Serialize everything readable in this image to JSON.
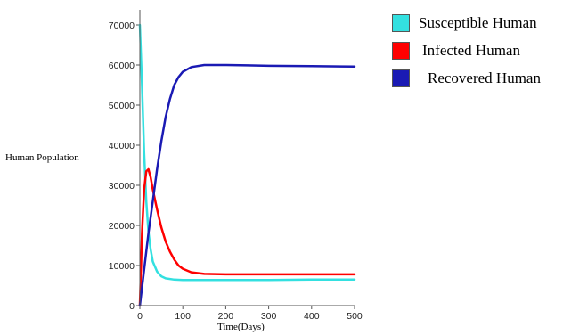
{
  "chart_data": {
    "type": "line",
    "title": "",
    "xlabel": "Time(Days)",
    "ylabel": "Human Population",
    "xlim": [
      0,
      500
    ],
    "ylim": [
      0,
      72000
    ],
    "xticks": [
      0,
      100,
      200,
      300,
      400,
      500
    ],
    "yticks": [
      0,
      10000,
      20000,
      30000,
      40000,
      50000,
      60000,
      70000
    ],
    "grid": false,
    "legend_position": "top-right",
    "series": [
      {
        "name": "Susceptible Human",
        "color": "#33e0e0",
        "x": [
          0,
          5,
          10,
          15,
          20,
          25,
          30,
          40,
          50,
          60,
          80,
          100,
          150,
          200,
          300,
          400,
          500
        ],
        "y": [
          70000,
          55000,
          38000,
          26000,
          18500,
          14000,
          11000,
          8500,
          7300,
          6800,
          6500,
          6400,
          6400,
          6400,
          6400,
          6500,
          6500
        ]
      },
      {
        "name": "Infected Human",
        "color": "#ff0000",
        "x": [
          0,
          5,
          10,
          15,
          20,
          25,
          30,
          40,
          50,
          60,
          70,
          80,
          90,
          100,
          120,
          150,
          200,
          300,
          400,
          500
        ],
        "y": [
          0,
          18000,
          29000,
          33500,
          34000,
          32000,
          29000,
          24000,
          19500,
          16000,
          13500,
          11500,
          10000,
          9200,
          8300,
          7900,
          7800,
          7800,
          7800,
          7800
        ]
      },
      {
        "name": "Recovered Human",
        "color": "#1a1ab4",
        "x": [
          0,
          10,
          20,
          30,
          40,
          50,
          60,
          70,
          80,
          90,
          100,
          120,
          150,
          200,
          250,
          300,
          400,
          500
        ],
        "y": [
          0,
          9000,
          18000,
          26000,
          34000,
          41000,
          47000,
          51500,
          55000,
          57000,
          58300,
          59500,
          60000,
          60000,
          59900,
          59800,
          59700,
          59600
        ]
      }
    ]
  }
}
